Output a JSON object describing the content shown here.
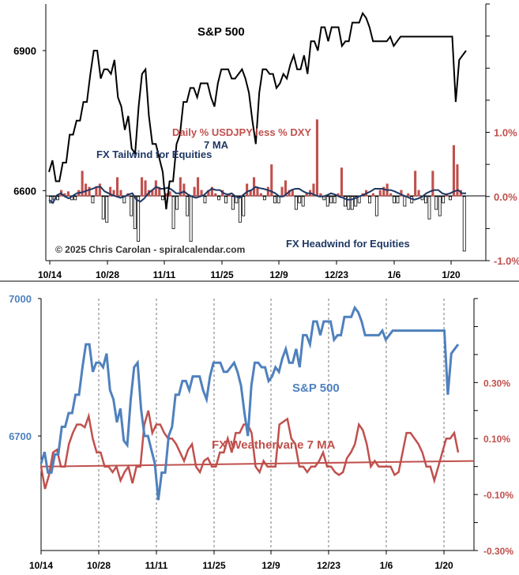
{
  "colors": {
    "top_spx": "#000000",
    "top_ma": "#1f3864",
    "bar_pos": "#c0504d",
    "bar_neg": "#ffffff",
    "bar_neg_stroke": "#000000",
    "bottom_spx": "#4f81bd",
    "bottom_vane": "#c0504d",
    "axis": "#000000",
    "grid": "#555555",
    "label_dark": "#1f3864",
    "label_red": "#c0504d"
  },
  "chart_data": [
    {
      "type": "line",
      "title": "S&P 500",
      "x_tick_labels": [
        "10/14",
        "10/28",
        "11/11",
        "11/25",
        "12/9",
        "12/23",
        "1/6",
        "1/20"
      ],
      "left_axis": {
        "range": [
          6450,
          7000
        ],
        "ticks": [
          {
            "v": 6600,
            "label": "6600"
          },
          {
            "v": 6900,
            "label": "6900"
          }
        ]
      },
      "right_axis": {
        "range": [
          -1.0,
          3.0
        ],
        "ticks": [
          {
            "v": 1.0,
            "label": "1.0%"
          },
          {
            "v": 0.0,
            "label": "0.0%"
          },
          {
            "v": -1.0,
            "label": "-1.0%"
          }
        ]
      },
      "annotations": {
        "usdjpy": "Daily % USDJPY less % DXY",
        "ma": "7 MA",
        "tailwind": "FX Tailwind for Equities",
        "headwind": "FX Headwind for Equities",
        "copyright": "© 2025 Chris Carolan - spiralcalendar.com"
      },
      "series": [
        {
          "name": "S&P 500",
          "axis": "left",
          "values": [
            6640,
            6665,
            6620,
            6620,
            6660,
            6660,
            6720,
            6720,
            6750,
            6750,
            6790,
            6790,
            6850,
            6900,
            6900,
            6840,
            6860,
            6860,
            6850,
            6880,
            6800,
            6780,
            6730,
            6760,
            6690,
            6680,
            6780,
            6850,
            6860,
            6760,
            6700,
            6700,
            6670,
            6640,
            6560,
            6620,
            6620,
            6700,
            6720,
            6790,
            6790,
            6820,
            6820,
            6800,
            6830,
            6830,
            6830,
            6800,
            6780,
            6830,
            6860,
            6860,
            6860,
            6840,
            6840,
            6850,
            6860,
            6840,
            6810,
            6750,
            6700,
            6810,
            6860,
            6860,
            6850,
            6850,
            6820,
            6830,
            6850,
            6840,
            6870,
            6890,
            6860,
            6860,
            6890,
            6850,
            6920,
            6920,
            6900,
            6950,
            6950,
            6920,
            6950,
            6950,
            6950,
            6910,
            6920,
            6920,
            6960,
            6960,
            6960,
            6980,
            6970,
            6950,
            6920,
            6920,
            6920,
            6920,
            6920,
            6930,
            6910,
            6920,
            6930,
            6930,
            6930,
            6930,
            6930,
            6930,
            6930,
            6930,
            6930,
            6930,
            6930,
            6930,
            6930,
            6930,
            6930,
            6930,
            6790,
            6880,
            6890,
            6900
          ]
        },
        {
          "name": "7 MA",
          "axis": "right",
          "values": [
            -0.05,
            -0.1,
            0.02,
            0.05,
            0.0,
            -0.03,
            0.01,
            0.05,
            0.06,
            0.08,
            0.1,
            0.12,
            0.15,
            0.15,
            0.08,
            0.05,
            0.02,
            0.0,
            -0.02,
            0.0,
            0.03,
            0.05,
            -0.05,
            -0.08,
            -0.03,
            0.05,
            0.1,
            0.15,
            0.12,
            0.12,
            0.14,
            0.1,
            0.05,
            0.05,
            0.08,
            0.03,
            0.0,
            -0.02,
            0.0,
            0.02,
            0.08,
            0.12,
            0.1,
            0.1,
            0.05,
            0.03,
            0.05,
            0.0,
            -0.02,
            0.03,
            0.08,
            0.1,
            0.15,
            0.13,
            0.12,
            0.1,
            0.08,
            0.05,
            0.0,
            0.0,
            0.05,
            0.1,
            0.12,
            0.12,
            0.08,
            0.05,
            0.05,
            0.02,
            0.0,
            0.0,
            0.02,
            0.05,
            0.03,
            0.0,
            -0.02,
            -0.05,
            -0.05,
            -0.03,
            0.0,
            0.02,
            0.05,
            0.08,
            0.12,
            0.12,
            0.12,
            0.1,
            0.1,
            0.08,
            0.05,
            0.02,
            0.0,
            -0.03,
            -0.05,
            -0.03,
            0.0,
            0.05,
            0.08,
            0.1,
            0.1,
            0.05,
            0.03,
            0.05,
            0.08,
            0.1,
            0.05,
            0.05
          ]
        },
        {
          "name": "Daily % USDJPY less % DXY",
          "axis": "right",
          "kind": "bar",
          "values": [
            -0.1,
            -0.05,
            -0.05,
            0.1,
            0.05,
            0.08,
            -0.05,
            -0.05,
            0.1,
            0.4,
            0.2,
            0.15,
            -0.1,
            0.15,
            0.2,
            -0.35,
            -0.4,
            0.15,
            0.1,
            0.3,
            0.1,
            -0.1,
            0.05,
            -0.3,
            -0.5,
            -0.7,
            0.3,
            0.25,
            0.1,
            0.1,
            0.25,
            0.15,
            -0.05,
            0.05,
            0.08,
            -0.5,
            -0.2,
            0.3,
            0.2,
            -0.3,
            -0.7,
            0.15,
            0.3,
            0.1,
            -0.1,
            0.1,
            0.15,
            0.05,
            -0.05,
            0.1,
            -0.1,
            0.05,
            -0.2,
            -0.1,
            -0.4,
            -0.3,
            0.2,
            0.1,
            0.3,
            0.15,
            0.05,
            -0.05,
            0.15,
            0.5,
            -0.1,
            -0.1,
            0.15,
            0.25,
            0.1,
            0.1,
            -0.2,
            -0.1,
            -0.15,
            0.05,
            0.1,
            0.2,
            1.2,
            0.05,
            -0.05,
            -0.15,
            -0.1,
            -0.1,
            0.05,
            0.45,
            -0.15,
            -0.2,
            -0.2,
            -0.15,
            -0.1,
            0.05,
            0.1,
            -0.1,
            0.05,
            -0.3,
            0.1,
            0.15,
            0.2,
            0.05,
            -0.1,
            -0.1,
            0.1,
            -0.15,
            0.05,
            -0.1,
            0.4,
            0.1,
            -0.05,
            -0.1,
            -0.35,
            0.4,
            -0.2,
            -0.3,
            -0.1,
            0.05,
            -0.05,
            0.8,
            0.5,
            0.1,
            -0.85
          ]
        }
      ]
    },
    {
      "type": "line",
      "title": "S&P 500",
      "x_tick_labels": [
        "10/14",
        "10/28",
        "11/11",
        "11/25",
        "12/9",
        "12/23",
        "1/6",
        "1/20"
      ],
      "left_axis": {
        "range": [
          6450,
          7000
        ],
        "ticks": [
          {
            "v": 6700,
            "label": "6700"
          },
          {
            "v": 7000,
            "label": "7000"
          }
        ]
      },
      "right_axis": {
        "range": [
          -0.3,
          0.6
        ],
        "ticks": [
          {
            "v": 0.3,
            "label": "0.30%"
          },
          {
            "v": 0.1,
            "label": "0.10%"
          },
          {
            "v": -0.1,
            "label": "-0.10%"
          },
          {
            "v": -0.3,
            "label": "-0.30%"
          }
        ]
      },
      "annotations": {
        "spx": "S&P 500",
        "vane": "FX Weathervane 7 MA"
      },
      "series": [
        {
          "name": "S&P 500",
          "axis": "left",
          "values": [
            6640,
            6665,
            6620,
            6620,
            6660,
            6660,
            6720,
            6720,
            6750,
            6750,
            6790,
            6790,
            6850,
            6900,
            6900,
            6840,
            6860,
            6860,
            6850,
            6880,
            6800,
            6780,
            6730,
            6760,
            6690,
            6680,
            6780,
            6850,
            6860,
            6760,
            6700,
            6700,
            6670,
            6640,
            6560,
            6620,
            6620,
            6700,
            6720,
            6790,
            6790,
            6820,
            6820,
            6800,
            6830,
            6830,
            6830,
            6800,
            6780,
            6830,
            6860,
            6860,
            6860,
            6840,
            6840,
            6850,
            6860,
            6840,
            6810,
            6750,
            6700,
            6810,
            6860,
            6860,
            6850,
            6850,
            6820,
            6830,
            6850,
            6840,
            6870,
            6890,
            6860,
            6860,
            6890,
            6850,
            6920,
            6920,
            6900,
            6950,
            6950,
            6920,
            6950,
            6950,
            6950,
            6910,
            6920,
            6920,
            6960,
            6960,
            6960,
            6980,
            6970,
            6950,
            6920,
            6920,
            6920,
            6920,
            6920,
            6930,
            6910,
            6920,
            6930,
            6930,
            6930,
            6930,
            6930,
            6930,
            6930,
            6930,
            6930,
            6930,
            6930,
            6930,
            6930,
            6930,
            6930,
            6930,
            6790,
            6880,
            6890,
            6900
          ]
        },
        {
          "name": "FX Weathervane 7 MA",
          "axis": "right",
          "values": [
            0.0,
            -0.08,
            -0.03,
            0.05,
            0.06,
            0.0,
            0.0,
            0.08,
            0.12,
            0.15,
            0.15,
            0.14,
            0.18,
            0.1,
            0.05,
            0.05,
            0.0,
            0.0,
            -0.02,
            0.0,
            -0.05,
            -0.02,
            0.0,
            -0.06,
            0.0,
            0.0,
            0.15,
            0.2,
            0.12,
            0.15,
            0.15,
            0.12,
            0.1,
            0.1,
            0.08,
            0.05,
            0.02,
            0.06,
            0.08,
            0.0,
            -0.02,
            0.02,
            0.03,
            0.0,
            0.0,
            0.05,
            0.05,
            0.1,
            0.05,
            0.12,
            0.12,
            0.15,
            0.15,
            0.12,
            0.0,
            -0.02,
            0.02,
            0.0,
            0.0,
            0.0,
            0.15,
            0.16,
            0.17,
            0.1,
            0.08,
            0.0,
            0.0,
            -0.02,
            0.0,
            0.0,
            0.02,
            0.05,
            0.0,
            0.0,
            -0.02,
            -0.03,
            -0.02,
            0.03,
            0.05,
            0.08,
            0.15,
            0.13,
            0.08,
            0.0,
            0.02,
            0.0,
            0.0,
            0.0,
            0.0,
            -0.03,
            -0.02,
            0.05,
            0.12,
            0.12,
            0.1,
            0.08,
            0.05,
            0.0,
            0.0,
            -0.05,
            0.0,
            0.05,
            0.1,
            0.1,
            0.12,
            0.05
          ]
        },
        {
          "name": "trend",
          "axis": "right",
          "values": [
            0.0,
            0.02
          ]
        }
      ]
    }
  ]
}
